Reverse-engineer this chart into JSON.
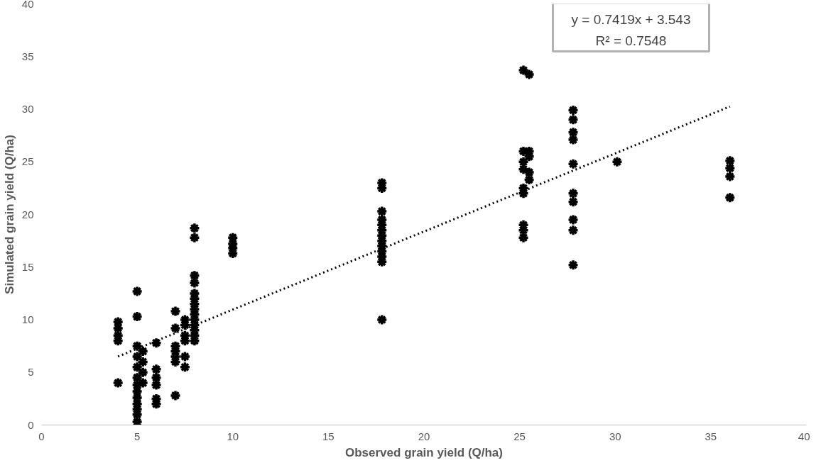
{
  "chart_data": {
    "type": "scatter",
    "xlabel": "Observed grain yield (Q/ha)",
    "ylabel": "Simulated grain yield (Q/ha)",
    "xlim": [
      0,
      40
    ],
    "ylim": [
      0,
      40
    ],
    "xticks": [
      0,
      5,
      10,
      15,
      20,
      25,
      30,
      35,
      40
    ],
    "yticks": [
      0,
      5,
      10,
      15,
      20,
      25,
      30,
      35,
      40
    ],
    "grid": false,
    "marker": "cross",
    "annotations": [
      "y = 0.7419x + 3.543",
      "R² = 0.7548"
    ],
    "series": [
      {
        "color": "#000000",
        "x": [
          4,
          4,
          4,
          4,
          4,
          5,
          5,
          5,
          5,
          5,
          5,
          5,
          5,
          5,
          5,
          5,
          5,
          5,
          5.3,
          5.3,
          5.3,
          5.3,
          6,
          6,
          6,
          6,
          6,
          6,
          7,
          7,
          7,
          7,
          7,
          7,
          7,
          7.5,
          7.5,
          7.5,
          7.5,
          7.5,
          7.5,
          8,
          8,
          8,
          8,
          8,
          8,
          8,
          8,
          8,
          8,
          8,
          8,
          8,
          8,
          10,
          10,
          10,
          10,
          17.8,
          17.8,
          17.8,
          17.8,
          17.8,
          17.8,
          17.8,
          17.8,
          17.8,
          17.8,
          17.8,
          17.8,
          17.8,
          25.2,
          25.2,
          25.2,
          25.2,
          25.2,
          25.2,
          25.2,
          25.2,
          25.2,
          25.5,
          25.5,
          25.5,
          25.5,
          25.5,
          27.8,
          27.8,
          27.8,
          27.8,
          27.8,
          27.8,
          27.8,
          27.8,
          27.8,
          27.8,
          30.1,
          36,
          36,
          36,
          36
        ],
        "values": [
          9.8,
          9.2,
          8.5,
          8.0,
          4.0,
          12.7,
          10.3,
          7.5,
          6.5,
          5.5,
          4.5,
          3.8,
          3.2,
          2.6,
          2.0,
          1.5,
          1.0,
          0.3,
          7.0,
          6.0,
          5.0,
          4.0,
          7.8,
          5.3,
          4.5,
          3.8,
          2.5,
          2.0,
          10.8,
          9.2,
          7.5,
          7.0,
          6.5,
          6.0,
          2.8,
          10.0,
          9.5,
          8.5,
          8.0,
          6.5,
          5.5,
          18.7,
          17.8,
          14.2,
          13.5,
          12.5,
          12.0,
          11.5,
          11.0,
          10.5,
          10.0,
          9.5,
          9.0,
          8.5,
          8.0,
          17.8,
          17.2,
          16.8,
          16.3,
          23.0,
          22.5,
          20.3,
          19.5,
          19.0,
          18.5,
          18.0,
          17.5,
          17.0,
          16.5,
          16.0,
          15.5,
          10.0,
          33.7,
          26.0,
          25.0,
          24.3,
          22.5,
          22.0,
          19.0,
          18.5,
          17.8,
          33.3,
          26.0,
          25.5,
          24.0,
          23.3,
          29.9,
          29.0,
          27.8,
          27.1,
          24.8,
          22.0,
          21.2,
          19.5,
          18.5,
          15.2,
          25.0,
          25.1,
          24.4,
          23.6,
          21.6
        ]
      },
      {
        "type": "line",
        "color": "#000000",
        "line_style": "dotted",
        "marker": "none",
        "x": [
          4,
          36
        ],
        "values": [
          6.51,
          30.25
        ]
      }
    ]
  }
}
